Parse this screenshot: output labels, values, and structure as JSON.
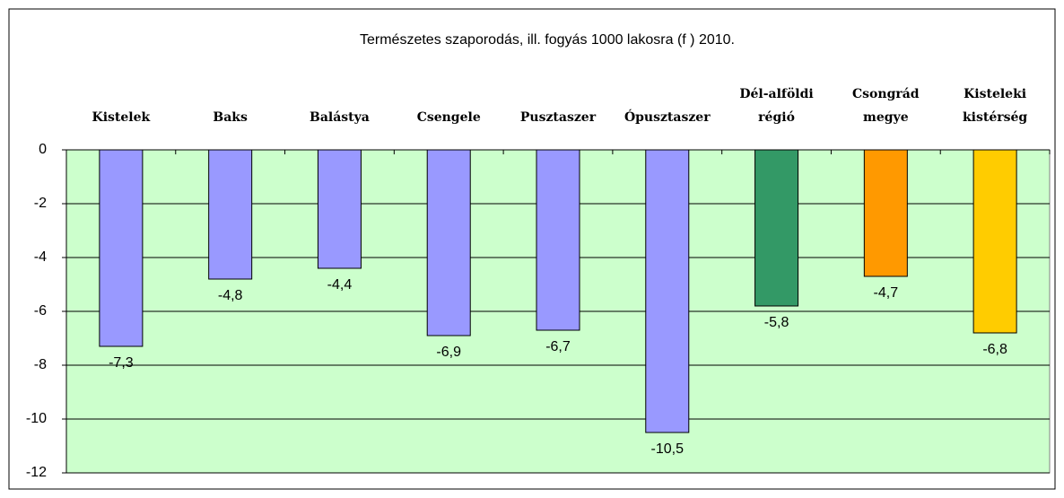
{
  "chart_data": {
    "type": "bar",
    "title": "Természetes szaporodás, ill. fogyás 1000 lakosra (f ) 2010.",
    "categories": [
      "Kistelek",
      "Baks",
      "Balástya",
      "Csengele",
      "Pusztaszer",
      "Ópusztaszer",
      "Dél-alföldi\nrégió",
      "Csongrád\nmegye",
      "Kisteleki\nkistérség"
    ],
    "values": [
      -7.3,
      -4.8,
      -4.4,
      -6.9,
      -6.7,
      -10.5,
      -5.8,
      -4.7,
      -6.8
    ],
    "value_labels": [
      "-7,3",
      "-4,8",
      "-4,4",
      "-6,9",
      "-6,7",
      "-10,5",
      "-5,8",
      "-4,7",
      "-6,8"
    ],
    "colors": [
      "#9999ff",
      "#9999ff",
      "#9999ff",
      "#9999ff",
      "#9999ff",
      "#9999ff",
      "#339966",
      "#ff9900",
      "#ffcc00"
    ],
    "ylim": [
      -12,
      0
    ],
    "yticks": [
      0,
      -2,
      -4,
      -6,
      -8,
      -10,
      -12
    ],
    "grid": true
  }
}
